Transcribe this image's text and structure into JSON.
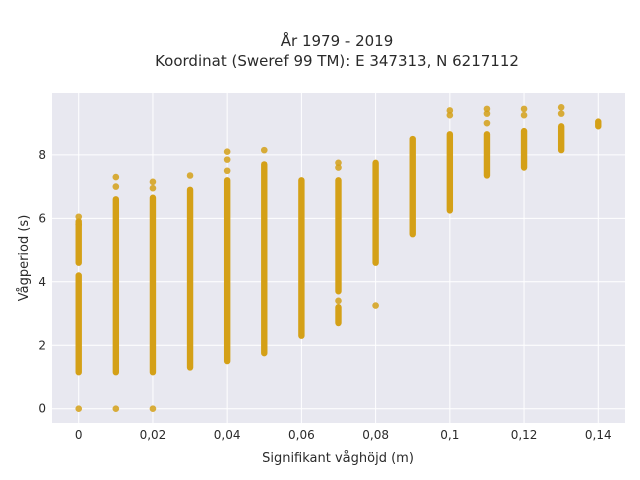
{
  "chart_data": {
    "type": "scatter",
    "title_line1": "År 1979 - 2019",
    "title_line2": "Koordinat (Sweref 99 TM): E 347313, N 6217112",
    "xlabel": "Signifikant våghöjd (m)",
    "ylabel": "Vågperiod (s)",
    "xlim": [
      -0.0072,
      0.1472
    ],
    "ylim": [
      -0.45,
      9.95
    ],
    "grid": true,
    "x_ticks": [
      {
        "value": 0,
        "label": "0"
      },
      {
        "value": 0.02,
        "label": "0,02"
      },
      {
        "value": 0.04,
        "label": "0,04"
      },
      {
        "value": 0.06,
        "label": "0,06"
      },
      {
        "value": 0.08,
        "label": "0,08"
      },
      {
        "value": 0.1,
        "label": "0,1"
      },
      {
        "value": 0.12,
        "label": "0,12"
      },
      {
        "value": 0.14,
        "label": "0,14"
      }
    ],
    "y_ticks": [
      {
        "value": 0,
        "label": "0"
      },
      {
        "value": 2,
        "label": "2"
      },
      {
        "value": 4,
        "label": "4"
      },
      {
        "value": 6,
        "label": "6"
      },
      {
        "value": 8,
        "label": "8"
      }
    ],
    "colors": {
      "marker": "#d4a017",
      "plot_bg": "#e8e8f0",
      "grid": "#ffffff"
    },
    "columns": [
      {
        "x": 0,
        "bands": [
          [
            1.05,
            4.3
          ],
          [
            4.5,
            6.0
          ]
        ],
        "outliers": [
          0.0,
          5.8,
          6.05
        ]
      },
      {
        "x": 0.01,
        "bands": [
          [
            1.05,
            6.7
          ]
        ],
        "outliers": [
          0.0,
          7.0,
          7.3
        ]
      },
      {
        "x": 0.02,
        "bands": [
          [
            1.05,
            6.75
          ]
        ],
        "outliers": [
          0.0,
          6.95,
          7.15
        ]
      },
      {
        "x": 0.03,
        "bands": [
          [
            1.2,
            7.0
          ]
        ],
        "outliers": [
          7.35
        ]
      },
      {
        "x": 0.04,
        "bands": [
          [
            1.4,
            7.3
          ]
        ],
        "outliers": [
          7.5,
          7.85,
          8.1
        ]
      },
      {
        "x": 0.05,
        "bands": [
          [
            1.65,
            7.8
          ]
        ],
        "outliers": [
          8.15
        ]
      },
      {
        "x": 0.06,
        "bands": [
          [
            2.2,
            7.3
          ]
        ],
        "outliers": []
      },
      {
        "x": 0.07,
        "bands": [
          [
            3.6,
            7.3
          ],
          [
            2.6,
            3.3
          ]
        ],
        "outliers": [
          3.4,
          7.6,
          7.75
        ]
      },
      {
        "x": 0.08,
        "bands": [
          [
            4.5,
            7.85
          ]
        ],
        "outliers": [
          3.25
        ]
      },
      {
        "x": 0.09,
        "bands": [
          [
            5.4,
            8.6
          ]
        ],
        "outliers": []
      },
      {
        "x": 0.1,
        "bands": [
          [
            6.15,
            8.75
          ]
        ],
        "outliers": [
          9.25,
          9.4
        ]
      },
      {
        "x": 0.11,
        "bands": [
          [
            7.25,
            8.75
          ]
        ],
        "outliers": [
          9.0,
          9.3,
          9.45
        ]
      },
      {
        "x": 0.12,
        "bands": [
          [
            7.5,
            8.85
          ]
        ],
        "outliers": [
          9.25,
          9.45
        ]
      },
      {
        "x": 0.13,
        "bands": [
          [
            8.05,
            9.0
          ]
        ],
        "outliers": [
          9.3,
          9.5
        ]
      },
      {
        "x": 0.14,
        "bands": [
          [
            8.8,
            9.15
          ]
        ],
        "outliers": []
      }
    ]
  }
}
